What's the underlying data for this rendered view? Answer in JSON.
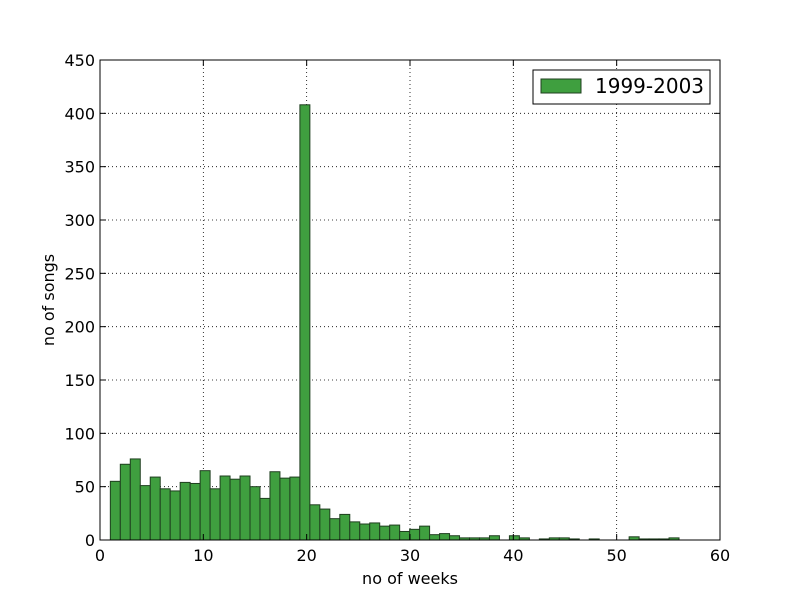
{
  "chart_data": {
    "type": "bar",
    "xlabel": "no of weeks",
    "ylabel": "no of songs",
    "xlim": [
      0,
      60
    ],
    "ylim": [
      0,
      450
    ],
    "xticks": [
      0,
      10,
      20,
      30,
      40,
      50,
      60
    ],
    "yticks": [
      0,
      50,
      100,
      150,
      200,
      250,
      300,
      350,
      400,
      450
    ],
    "grid": true,
    "legend_position": "top-right",
    "colors": {
      "bar_fill": "#3f9f3f",
      "bar_edge": "#1f3f1f"
    },
    "series": [
      {
        "name": "1999-2003",
        "bin_width": 0.9655,
        "bin_starts": [
          1,
          1.9655,
          2.931,
          3.8966,
          4.8621,
          5.8276,
          6.7931,
          7.7586,
          8.7241,
          9.6897,
          10.6552,
          11.6207,
          12.5862,
          13.5517,
          14.5172,
          15.4828,
          16.4483,
          17.4138,
          18.3793,
          19.3448,
          20.3103,
          21.2759,
          22.2414,
          23.2069,
          24.1724,
          25.1379,
          26.1034,
          27.069,
          28.0345,
          29,
          29.9655,
          30.931,
          31.8966,
          32.8621,
          33.8276,
          34.7931,
          35.7586,
          36.7241,
          37.6897,
          38.6552,
          39.6207,
          40.5862,
          41.5517,
          42.5172,
          43.4828,
          44.4483,
          45.4138,
          46.3793,
          47.3448,
          48.3103,
          49.2759,
          50.2414,
          51.2069,
          52.1724,
          53.1379,
          54.1034,
          55.069,
          56.0345
        ],
        "values": [
          55,
          71,
          76,
          51,
          59,
          48,
          46,
          54,
          53,
          65,
          48,
          60,
          57,
          60,
          50,
          39,
          64,
          58,
          59,
          408,
          33,
          29,
          20,
          24,
          17,
          15,
          16,
          13,
          14,
          8,
          10,
          13,
          5,
          6,
          4,
          2,
          2,
          2,
          4,
          0,
          4,
          2,
          0,
          1,
          2,
          2,
          1,
          0,
          1,
          0,
          0,
          0,
          3,
          1,
          1,
          1,
          2,
          0
        ]
      }
    ]
  }
}
